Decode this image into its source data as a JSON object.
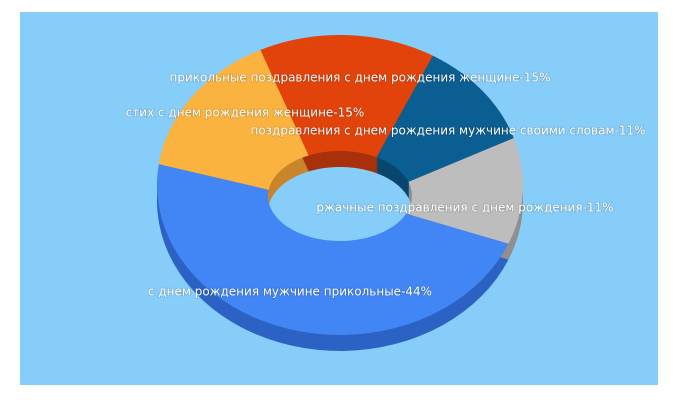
{
  "chart_data": {
    "type": "pie3d",
    "labels": [
      "с днем рождения мужчине прикольные-44%",
      "стих с днем рождения женщине-15%",
      "прикольные поздравления с днем рождения женщине-15%",
      "поздравления с днем рождения мужчине своими словам-11%",
      "ржачные поздравления с днем рождения-11%"
    ],
    "values": [
      44,
      15,
      15,
      11,
      11
    ],
    "colors": [
      "#4285f4",
      "#fbb33f",
      "#e2430b",
      "#0b5e91",
      "#bdbdbd"
    ],
    "side_colors": [
      "#2c62c4",
      "#c9852a",
      "#a8300a",
      "#08466d",
      "#8f8f8f"
    ]
  }
}
